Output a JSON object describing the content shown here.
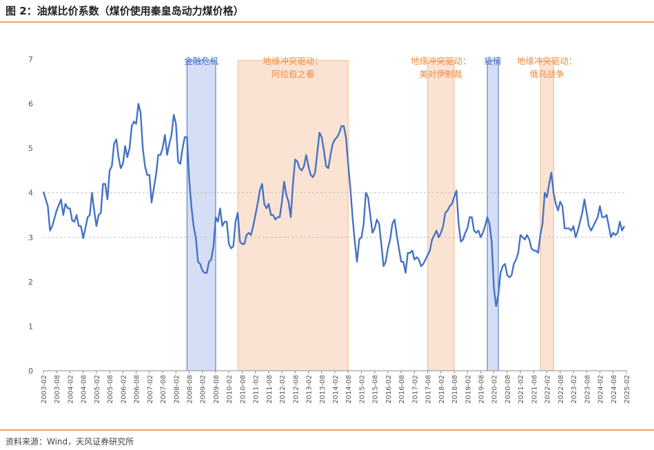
{
  "figure_title": "图 2：油煤比价系数（煤价使用秦皇岛动力煤价格）",
  "source_note": "资料来源：Wind，天风证券研究所",
  "colors": {
    "line": "#4472c4",
    "blue_shade": "#d5def5",
    "blue_edge": "#4472c4",
    "orange_shade": "#fbe3d3",
    "orange_edge": "#f5b88a",
    "orange_text": "#f08a3c",
    "blue_text": "#4472c4",
    "rule": "#f0a060"
  },
  "chart_data": {
    "type": "line",
    "title": "",
    "xlabel": "",
    "ylabel": "",
    "ylim": [
      0,
      7
    ],
    "yticks": [
      "0",
      "1",
      "2",
      "3",
      "4",
      "5",
      "6",
      "7"
    ],
    "grid": "horizontal dashed at 3 and 4",
    "x_tick_labels": [
      "2003-02",
      "2003-08",
      "2004-02",
      "2004-08",
      "2005-02",
      "2005-08",
      "2006-02",
      "2006-08",
      "2007-02",
      "2007-08",
      "2008-02",
      "2008-08",
      "2009-02",
      "2009-08",
      "2010-02",
      "2010-08",
      "2011-02",
      "2011-08",
      "2012-02",
      "2012-08",
      "2013-02",
      "2013-08",
      "2014-02",
      "2014-08",
      "2015-02",
      "2015-08",
      "2016-02",
      "2016-08",
      "2017-02",
      "2017-08",
      "2018-02",
      "2018-08",
      "2019-02",
      "2019-08",
      "2020-02",
      "2020-08",
      "2021-02",
      "2021-08",
      "2022-02",
      "2022-08",
      "2023-02",
      "2023-08",
      "2024-02",
      "2024-08",
      "2025-02"
    ],
    "series": [
      {
        "name": "",
        "points": [
          [
            "2003-02",
            4.02
          ],
          [
            "2003-04",
            3.7
          ],
          [
            "2003-05",
            3.15
          ],
          [
            "2003-06",
            3.25
          ],
          [
            "2003-08",
            3.6
          ],
          [
            "2003-10",
            3.85
          ],
          [
            "2003-11",
            3.5
          ],
          [
            "2003-12",
            3.75
          ],
          [
            "2004-01",
            3.65
          ],
          [
            "2004-02",
            3.65
          ],
          [
            "2004-03",
            3.38
          ],
          [
            "2004-04",
            3.35
          ],
          [
            "2004-05",
            3.5
          ],
          [
            "2004-06",
            3.25
          ],
          [
            "2004-07",
            3.25
          ],
          [
            "2004-08",
            2.98
          ],
          [
            "2004-09",
            3.2
          ],
          [
            "2004-10",
            3.45
          ],
          [
            "2004-11",
            3.5
          ],
          [
            "2004-12",
            4.0
          ],
          [
            "2005-01",
            3.6
          ],
          [
            "2005-02",
            3.25
          ],
          [
            "2005-03",
            3.5
          ],
          [
            "2005-04",
            3.55
          ],
          [
            "2005-05",
            4.2
          ],
          [
            "2005-06",
            4.2
          ],
          [
            "2005-07",
            3.85
          ],
          [
            "2005-08",
            4.5
          ],
          [
            "2005-09",
            4.6
          ],
          [
            "2005-10",
            5.1
          ],
          [
            "2005-11",
            5.2
          ],
          [
            "2005-12",
            4.8
          ],
          [
            "2006-01",
            4.55
          ],
          [
            "2006-02",
            4.65
          ],
          [
            "2006-03",
            5.05
          ],
          [
            "2006-04",
            4.8
          ],
          [
            "2006-05",
            5.0
          ],
          [
            "2006-06",
            5.5
          ],
          [
            "2006-07",
            5.6
          ],
          [
            "2006-08",
            5.55
          ],
          [
            "2006-09",
            6.0
          ],
          [
            "2006-10",
            5.8
          ],
          [
            "2006-11",
            5.0
          ],
          [
            "2006-12",
            4.6
          ],
          [
            "2007-01",
            4.4
          ],
          [
            "2007-02",
            4.4
          ],
          [
            "2007-03",
            3.78
          ],
          [
            "2007-04",
            4.1
          ],
          [
            "2007-05",
            4.4
          ],
          [
            "2007-06",
            4.85
          ],
          [
            "2007-07",
            4.85
          ],
          [
            "2007-08",
            5.0
          ],
          [
            "2007-09",
            5.3
          ],
          [
            "2007-10",
            4.85
          ],
          [
            "2007-11",
            5.1
          ],
          [
            "2007-12",
            5.3
          ],
          [
            "2008-01",
            5.75
          ],
          [
            "2008-02",
            5.55
          ],
          [
            "2008-03",
            4.7
          ],
          [
            "2008-04",
            4.65
          ],
          [
            "2008-05",
            5.0
          ],
          [
            "2008-06",
            5.25
          ],
          [
            "2008-07",
            5.25
          ],
          [
            "2008-08",
            4.3
          ],
          [
            "2008-09",
            3.7
          ],
          [
            "2008-10",
            3.25
          ],
          [
            "2008-11",
            3.0
          ],
          [
            "2008-12",
            2.45
          ],
          [
            "2009-01",
            2.4
          ],
          [
            "2009-02",
            2.25
          ],
          [
            "2009-03",
            2.2
          ],
          [
            "2009-04",
            2.2
          ],
          [
            "2009-05",
            2.45
          ],
          [
            "2009-06",
            2.5
          ],
          [
            "2009-07",
            2.8
          ],
          [
            "2009-08",
            3.45
          ],
          [
            "2009-09",
            3.35
          ],
          [
            "2009-10",
            3.65
          ],
          [
            "2009-11",
            3.25
          ],
          [
            "2009-12",
            3.35
          ],
          [
            "2010-01",
            3.35
          ],
          [
            "2010-02",
            2.85
          ],
          [
            "2010-03",
            2.75
          ],
          [
            "2010-04",
            2.8
          ],
          [
            "2010-05",
            3.35
          ],
          [
            "2010-06",
            3.55
          ],
          [
            "2010-07",
            2.9
          ],
          [
            "2010-08",
            2.85
          ],
          [
            "2010-09",
            2.85
          ],
          [
            "2010-10",
            3.05
          ],
          [
            "2010-11",
            3.1
          ],
          [
            "2010-12",
            3.05
          ],
          [
            "2011-01",
            3.25
          ],
          [
            "2011-02",
            3.5
          ],
          [
            "2011-03",
            3.75
          ],
          [
            "2011-04",
            4.05
          ],
          [
            "2011-05",
            4.2
          ],
          [
            "2011-06",
            3.75
          ],
          [
            "2011-07",
            3.65
          ],
          [
            "2011-08",
            3.75
          ],
          [
            "2011-09",
            3.5
          ],
          [
            "2011-10",
            3.5
          ],
          [
            "2011-11",
            3.4
          ],
          [
            "2011-12",
            3.45
          ],
          [
            "2012-01",
            3.45
          ],
          [
            "2012-02",
            3.8
          ],
          [
            "2012-03",
            4.25
          ],
          [
            "2012-04",
            3.95
          ],
          [
            "2012-05",
            3.8
          ],
          [
            "2012-06",
            3.45
          ],
          [
            "2012-07",
            4.2
          ],
          [
            "2012-08",
            4.75
          ],
          [
            "2012-09",
            4.7
          ],
          [
            "2012-10",
            4.55
          ],
          [
            "2012-11",
            4.5
          ],
          [
            "2012-12",
            4.6
          ],
          [
            "2013-01",
            4.85
          ],
          [
            "2013-02",
            4.6
          ],
          [
            "2013-03",
            4.4
          ],
          [
            "2013-04",
            4.35
          ],
          [
            "2013-05",
            4.45
          ],
          [
            "2013-06",
            4.9
          ],
          [
            "2013-07",
            5.35
          ],
          [
            "2013-08",
            5.25
          ],
          [
            "2013-09",
            4.95
          ],
          [
            "2013-10",
            4.6
          ],
          [
            "2013-11",
            4.55
          ],
          [
            "2013-12",
            4.85
          ],
          [
            "2014-01",
            5.1
          ],
          [
            "2014-02",
            5.2
          ],
          [
            "2014-03",
            5.25
          ],
          [
            "2014-04",
            5.35
          ],
          [
            "2014-05",
            5.5
          ],
          [
            "2014-06",
            5.5
          ],
          [
            "2014-07",
            5.25
          ],
          [
            "2014-08",
            4.65
          ],
          [
            "2014-09",
            4.1
          ],
          [
            "2014-10",
            3.45
          ],
          [
            "2014-11",
            2.9
          ],
          [
            "2014-12",
            2.45
          ],
          [
            "2015-01",
            2.95
          ],
          [
            "2015-02",
            3.0
          ],
          [
            "2015-03",
            3.3
          ],
          [
            "2015-04",
            4.0
          ],
          [
            "2015-05",
            3.9
          ],
          [
            "2015-06",
            3.5
          ],
          [
            "2015-07",
            3.1
          ],
          [
            "2015-08",
            3.2
          ],
          [
            "2015-09",
            3.4
          ],
          [
            "2015-10",
            3.3
          ],
          [
            "2015-11",
            2.85
          ],
          [
            "2015-12",
            2.35
          ],
          [
            "2016-01",
            2.45
          ],
          [
            "2016-02",
            2.75
          ],
          [
            "2016-03",
            2.95
          ],
          [
            "2016-04",
            3.3
          ],
          [
            "2016-05",
            3.4
          ],
          [
            "2016-06",
            3.05
          ],
          [
            "2016-07",
            2.75
          ],
          [
            "2016-08",
            2.45
          ],
          [
            "2016-09",
            2.45
          ],
          [
            "2016-10",
            2.2
          ],
          [
            "2016-11",
            2.65
          ],
          [
            "2016-12",
            2.65
          ],
          [
            "2017-01",
            2.7
          ],
          [
            "2017-02",
            2.5
          ],
          [
            "2017-03",
            2.55
          ],
          [
            "2017-04",
            2.5
          ],
          [
            "2017-05",
            2.35
          ],
          [
            "2017-06",
            2.4
          ],
          [
            "2017-07",
            2.5
          ],
          [
            "2017-08",
            2.6
          ],
          [
            "2017-09",
            2.7
          ],
          [
            "2017-10",
            2.95
          ],
          [
            "2017-11",
            3.05
          ],
          [
            "2017-12",
            3.15
          ],
          [
            "2018-01",
            3.0
          ],
          [
            "2018-02",
            3.1
          ],
          [
            "2018-03",
            3.25
          ],
          [
            "2018-04",
            3.55
          ],
          [
            "2018-05",
            3.6
          ],
          [
            "2018-06",
            3.7
          ],
          [
            "2018-07",
            3.75
          ],
          [
            "2018-08",
            3.9
          ],
          [
            "2018-09",
            4.05
          ],
          [
            "2018-10",
            3.3
          ],
          [
            "2018-11",
            2.9
          ],
          [
            "2018-12",
            2.95
          ],
          [
            "2019-01",
            3.1
          ],
          [
            "2019-02",
            3.2
          ],
          [
            "2019-03",
            3.45
          ],
          [
            "2019-04",
            3.45
          ],
          [
            "2019-05",
            3.15
          ],
          [
            "2019-06",
            3.1
          ],
          [
            "2019-07",
            3.15
          ],
          [
            "2019-08",
            3.0
          ],
          [
            "2019-09",
            3.1
          ],
          [
            "2019-10",
            3.25
          ],
          [
            "2019-11",
            3.45
          ],
          [
            "2019-12",
            3.3
          ],
          [
            "2020-01",
            2.9
          ],
          [
            "2020-02",
            1.85
          ],
          [
            "2020-03",
            1.45
          ],
          [
            "2020-04",
            1.7
          ],
          [
            "2020-05",
            2.2
          ],
          [
            "2020-06",
            2.35
          ],
          [
            "2020-07",
            2.4
          ],
          [
            "2020-08",
            2.15
          ],
          [
            "2020-09",
            2.1
          ],
          [
            "2020-10",
            2.15
          ],
          [
            "2020-11",
            2.4
          ],
          [
            "2020-12",
            2.5
          ],
          [
            "2021-01",
            2.65
          ],
          [
            "2021-02",
            3.05
          ],
          [
            "2021-03",
            3.0
          ],
          [
            "2021-04",
            2.95
          ],
          [
            "2021-05",
            3.05
          ],
          [
            "2021-06",
            2.95
          ],
          [
            "2021-07",
            2.75
          ],
          [
            "2021-08",
            2.7
          ],
          [
            "2021-09",
            2.7
          ],
          [
            "2021-10",
            2.65
          ],
          [
            "2021-11",
            3.05
          ],
          [
            "2021-12",
            3.3
          ],
          [
            "2022-01",
            4.0
          ],
          [
            "2022-02",
            3.9
          ],
          [
            "2022-03",
            4.2
          ],
          [
            "2022-04",
            4.45
          ],
          [
            "2022-05",
            4.0
          ],
          [
            "2022-06",
            3.75
          ],
          [
            "2022-07",
            3.6
          ],
          [
            "2022-08",
            3.8
          ],
          [
            "2022-09",
            3.7
          ],
          [
            "2022-10",
            3.2
          ],
          [
            "2022-11",
            3.2
          ],
          [
            "2022-12",
            3.2
          ],
          [
            "2023-01",
            3.15
          ],
          [
            "2023-02",
            3.25
          ],
          [
            "2023-03",
            3.0
          ],
          [
            "2023-04",
            3.15
          ],
          [
            "2023-05",
            3.35
          ],
          [
            "2023-06",
            3.55
          ],
          [
            "2023-07",
            3.85
          ],
          [
            "2023-08",
            3.55
          ],
          [
            "2023-09",
            3.25
          ],
          [
            "2023-10",
            3.15
          ],
          [
            "2023-11",
            3.25
          ],
          [
            "2023-12",
            3.35
          ],
          [
            "2024-01",
            3.45
          ],
          [
            "2024-02",
            3.7
          ],
          [
            "2024-03",
            3.45
          ],
          [
            "2024-04",
            3.45
          ],
          [
            "2024-05",
            3.5
          ],
          [
            "2024-06",
            3.25
          ],
          [
            "2024-07",
            3.0
          ],
          [
            "2024-08",
            3.1
          ],
          [
            "2024-09",
            3.05
          ],
          [
            "2024-10",
            3.1
          ],
          [
            "2024-11",
            3.35
          ],
          [
            "2024-12",
            3.15
          ],
          [
            "2025-01",
            3.25
          ]
        ]
      }
    ],
    "annotations": [
      {
        "lines": [
          "金融危机"
        ],
        "start": "2008-07",
        "end": "2009-08",
        "style": "blue"
      },
      {
        "lines": [
          "地缘冲突驱动：",
          "阿拉伯之春"
        ],
        "start": "2010-06",
        "end": "2014-08",
        "style": "orange"
      },
      {
        "lines": [
          "地缘冲突驱动：",
          "美对伊制裁"
        ],
        "start": "2017-08",
        "end": "2018-08",
        "style": "orange"
      },
      {
        "lines": [
          "疫情"
        ],
        "start": "2019-11",
        "end": "2020-04",
        "style": "blue"
      },
      {
        "lines": [
          "地缘冲突驱动：",
          "俄乌战争"
        ],
        "start": "2021-11",
        "end": "2022-05",
        "style": "orange"
      }
    ]
  }
}
